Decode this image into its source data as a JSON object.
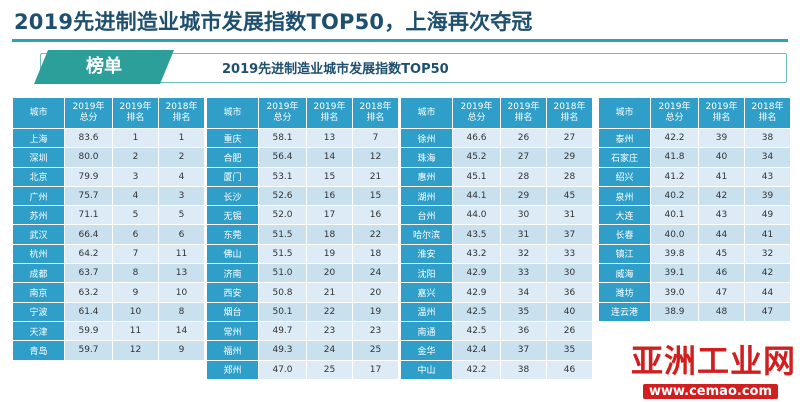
{
  "title": "2019先进制造业城市发展指数TOP50，上海再次夺冠",
  "banner": {
    "tab_label": "榜单",
    "subtitle": "2019先进制造业城市发展指数TOP50"
  },
  "headers": [
    "城市",
    "2019年\n总分",
    "2019年\n排名",
    "2018年\n排名"
  ],
  "tables": [
    {
      "rows": [
        [
          "上海",
          "83.6",
          "1",
          "1"
        ],
        [
          "深圳",
          "80.0",
          "2",
          "2"
        ],
        [
          "北京",
          "79.9",
          "3",
          "4"
        ],
        [
          "广州",
          "75.7",
          "4",
          "3"
        ],
        [
          "苏州",
          "71.1",
          "5",
          "5"
        ],
        [
          "武汉",
          "66.4",
          "6",
          "6"
        ],
        [
          "杭州",
          "64.2",
          "7",
          "11"
        ],
        [
          "成都",
          "63.7",
          "8",
          "13"
        ],
        [
          "南京",
          "63.2",
          "9",
          "10"
        ],
        [
          "宁波",
          "61.4",
          "10",
          "8"
        ],
        [
          "天津",
          "59.9",
          "11",
          "14"
        ],
        [
          "青岛",
          "59.7",
          "12",
          "9"
        ]
      ]
    },
    {
      "rows": [
        [
          "重庆",
          "58.1",
          "13",
          "7"
        ],
        [
          "合肥",
          "56.4",
          "14",
          "12"
        ],
        [
          "厦门",
          "53.1",
          "15",
          "21"
        ],
        [
          "长沙",
          "52.6",
          "16",
          "15"
        ],
        [
          "无锡",
          "52.0",
          "17",
          "16"
        ],
        [
          "东莞",
          "51.5",
          "18",
          "22"
        ],
        [
          "佛山",
          "51.5",
          "19",
          "18"
        ],
        [
          "济南",
          "51.0",
          "20",
          "24"
        ],
        [
          "西安",
          "50.8",
          "21",
          "20"
        ],
        [
          "烟台",
          "50.1",
          "22",
          "19"
        ],
        [
          "常州",
          "49.7",
          "23",
          "23"
        ],
        [
          "福州",
          "49.3",
          "24",
          "25"
        ],
        [
          "郑州",
          "47.0",
          "25",
          "17"
        ]
      ]
    },
    {
      "rows": [
        [
          "徐州",
          "46.6",
          "26",
          "27"
        ],
        [
          "珠海",
          "45.2",
          "27",
          "29"
        ],
        [
          "惠州",
          "45.1",
          "28",
          "28"
        ],
        [
          "湖州",
          "44.1",
          "29",
          "45"
        ],
        [
          "台州",
          "44.0",
          "30",
          "31"
        ],
        [
          "哈尔滨",
          "43.5",
          "31",
          "37"
        ],
        [
          "淮安",
          "43.2",
          "32",
          "33"
        ],
        [
          "沈阳",
          "42.9",
          "33",
          "30"
        ],
        [
          "嘉兴",
          "42.9",
          "34",
          "36"
        ],
        [
          "温州",
          "42.5",
          "35",
          "40"
        ],
        [
          "南通",
          "42.5",
          "36",
          "26"
        ],
        [
          "金华",
          "42.4",
          "37",
          "35"
        ],
        [
          "中山",
          "42.2",
          "38",
          "46"
        ]
      ]
    },
    {
      "rows": [
        [
          "泰州",
          "42.2",
          "39",
          "38"
        ],
        [
          "石家庄",
          "41.8",
          "40",
          "34"
        ],
        [
          "绍兴",
          "41.2",
          "41",
          "43"
        ],
        [
          "泉州",
          "40.2",
          "42",
          "39"
        ],
        [
          "大连",
          "40.1",
          "43",
          "49"
        ],
        [
          "长春",
          "40.0",
          "44",
          "41"
        ],
        [
          "镇江",
          "39.8",
          "45",
          "32"
        ],
        [
          "威海",
          "39.1",
          "46",
          "42"
        ],
        [
          "潍坊",
          "39.0",
          "47",
          "44"
        ],
        [
          "连云港",
          "38.9",
          "48",
          "47"
        ]
      ]
    }
  ],
  "watermark": {
    "text": "亚洲工业网",
    "url": "www.cemao.com"
  },
  "colors": {
    "header": "#2f9fc9",
    "accent": "#2d9f9b",
    "row": "#dcebf5"
  }
}
